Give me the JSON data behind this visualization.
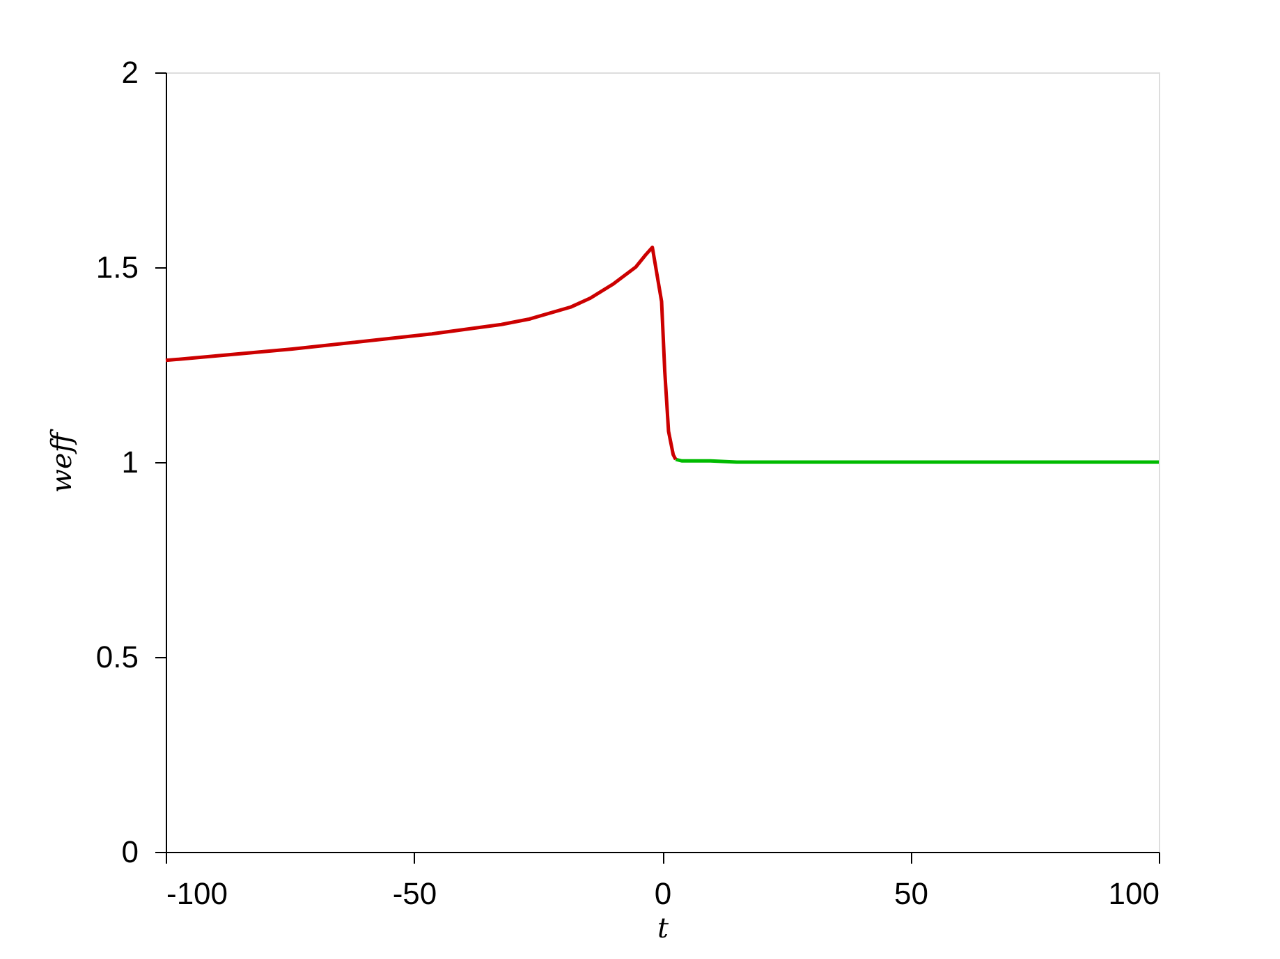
{
  "chart_data": {
    "type": "line",
    "xlabel": "t",
    "ylabel": "weff",
    "xlim": [
      -100,
      100
    ],
    "xticks": [
      -100,
      -50,
      0,
      50,
      100
    ],
    "ylim": [
      0,
      2
    ],
    "yticks": [
      0,
      0.5,
      1,
      1.5,
      2
    ],
    "grid": false,
    "legend": false,
    "marker": "none",
    "line_style": "solid",
    "series": [
      {
        "color": "#00bb00",
        "x": [
          2.7,
          4,
          6,
          9.7,
          15,
          30,
          60,
          100
        ],
        "values": [
          1.007,
          1.003,
          1.003,
          1.003,
          1.0,
          1.0,
          1.0,
          1.0
        ]
      },
      {
        "color": "#cc0000",
        "x": [
          -100,
          -74.5,
          -46.4,
          -32.4,
          -26.8,
          -18.4,
          -14.6,
          -10,
          -5.3,
          -3.4,
          -2.0,
          -0.14,
          0.5,
          1.26,
          2.2,
          2.7
        ],
        "values": [
          1.261,
          1.29,
          1.329,
          1.353,
          1.367,
          1.398,
          1.42,
          1.456,
          1.501,
          1.531,
          1.551,
          1.412,
          1.233,
          1.079,
          1.019,
          1.007
        ]
      }
    ]
  }
}
